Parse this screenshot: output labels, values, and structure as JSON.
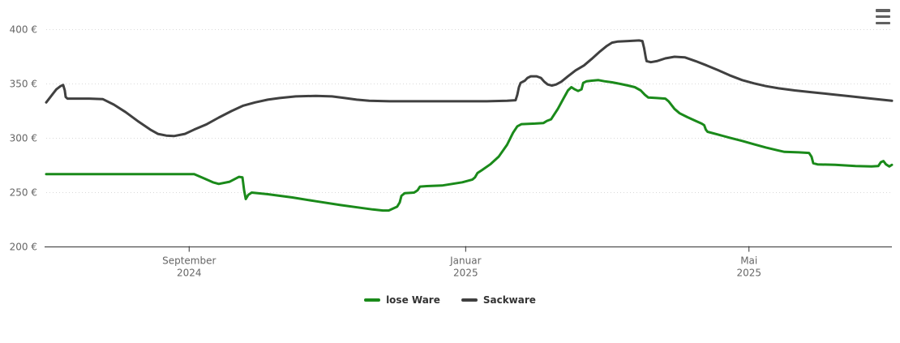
{
  "chart": {
    "background": "#ffffff",
    "axis_color": "#333333",
    "grid_color": "#d9d9d9",
    "label_color": "#666666",
    "menu": {
      "icon": "hamburger-icon"
    }
  },
  "chart_data": {
    "type": "line",
    "title": "",
    "xlabel": "",
    "ylabel": "",
    "x_domain": [
      "Juli 2024",
      "Juli 2025"
    ],
    "x_unit": "fraction of time axis (0 = Juli 2024, 1 = Juli 2025)",
    "ylim": [
      200,
      400
    ],
    "grid": "horizontal dotted",
    "legend_position": "bottom-center",
    "x_ticks": [
      {
        "pos": 0.169,
        "line1": "September",
        "line2": "2024"
      },
      {
        "pos": 0.496,
        "line1": "Januar",
        "line2": "2025"
      },
      {
        "pos": 0.831,
        "line1": "Mai",
        "line2": "2025"
      }
    ],
    "y_ticks": [
      {
        "value": 400,
        "label": "400 €"
      },
      {
        "value": 350,
        "label": "350 €"
      },
      {
        "value": 300,
        "label": "300 €"
      },
      {
        "value": 250,
        "label": "250 €"
      },
      {
        "value": 200,
        "label": "200 €"
      }
    ],
    "series": [
      {
        "name": "lose Ware",
        "color": "#1a8a1a",
        "points": [
          [
            0.0,
            267
          ],
          [
            0.09,
            267
          ],
          [
            0.175,
            267
          ],
          [
            0.187,
            263
          ],
          [
            0.197,
            259.5
          ],
          [
            0.204,
            258
          ],
          [
            0.217,
            260
          ],
          [
            0.228,
            264.5
          ],
          [
            0.232,
            264
          ],
          [
            0.234,
            252
          ],
          [
            0.236,
            244
          ],
          [
            0.239,
            248
          ],
          [
            0.243,
            250
          ],
          [
            0.262,
            248.5
          ],
          [
            0.291,
            245.5
          ],
          [
            0.319,
            242
          ],
          [
            0.348,
            238.5
          ],
          [
            0.372,
            236
          ],
          [
            0.386,
            234.5
          ],
          [
            0.398,
            233.5
          ],
          [
            0.405,
            233.5
          ],
          [
            0.415,
            237
          ],
          [
            0.418,
            241
          ],
          [
            0.42,
            247
          ],
          [
            0.424,
            249.5
          ],
          [
            0.435,
            250
          ],
          [
            0.439,
            252
          ],
          [
            0.442,
            255.5
          ],
          [
            0.45,
            256
          ],
          [
            0.468,
            256.5
          ],
          [
            0.48,
            258
          ],
          [
            0.492,
            259.5
          ],
          [
            0.504,
            262
          ],
          [
            0.507,
            264
          ],
          [
            0.51,
            268
          ],
          [
            0.515,
            270.5
          ],
          [
            0.525,
            276
          ],
          [
            0.535,
            283
          ],
          [
            0.545,
            294
          ],
          [
            0.552,
            305
          ],
          [
            0.557,
            311
          ],
          [
            0.562,
            313
          ],
          [
            0.578,
            313.5
          ],
          [
            0.588,
            314
          ],
          [
            0.592,
            316
          ],
          [
            0.597,
            317.5
          ],
          [
            0.605,
            327
          ],
          [
            0.612,
            337
          ],
          [
            0.617,
            344
          ],
          [
            0.621,
            347
          ],
          [
            0.625,
            345
          ],
          [
            0.629,
            343.5
          ],
          [
            0.633,
            345
          ],
          [
            0.635,
            351
          ],
          [
            0.639,
            352.5
          ],
          [
            0.645,
            353
          ],
          [
            0.653,
            353.5
          ],
          [
            0.66,
            352.5
          ],
          [
            0.669,
            351.5
          ],
          [
            0.679,
            350
          ],
          [
            0.688,
            348.5
          ],
          [
            0.696,
            347
          ],
          [
            0.703,
            344
          ],
          [
            0.708,
            340
          ],
          [
            0.712,
            337.5
          ],
          [
            0.722,
            337
          ],
          [
            0.732,
            336.5
          ],
          [
            0.736,
            334
          ],
          [
            0.743,
            327
          ],
          [
            0.749,
            323
          ],
          [
            0.758,
            319.5
          ],
          [
            0.768,
            316
          ],
          [
            0.775,
            313.5
          ],
          [
            0.778,
            312
          ],
          [
            0.78,
            308
          ],
          [
            0.782,
            306
          ],
          [
            0.794,
            303.5
          ],
          [
            0.808,
            300.5
          ],
          [
            0.823,
            297.5
          ],
          [
            0.837,
            294.5
          ],
          [
            0.851,
            291.5
          ],
          [
            0.864,
            289
          ],
          [
            0.873,
            287.5
          ],
          [
            0.89,
            287
          ],
          [
            0.902,
            286.5
          ],
          [
            0.905,
            283
          ],
          [
            0.907,
            277
          ],
          [
            0.912,
            276
          ],
          [
            0.933,
            275.5
          ],
          [
            0.957,
            274.5
          ],
          [
            0.976,
            274
          ],
          [
            0.984,
            274.5
          ],
          [
            0.987,
            278
          ],
          [
            0.99,
            279
          ],
          [
            0.993,
            276
          ],
          [
            0.997,
            274
          ],
          [
            1.0,
            275.5
          ]
        ]
      },
      {
        "name": "Sackware",
        "color": "#404040",
        "points": [
          [
            0.0,
            333
          ],
          [
            0.003,
            336
          ],
          [
            0.008,
            341
          ],
          [
            0.012,
            345
          ],
          [
            0.017,
            348
          ],
          [
            0.02,
            349
          ],
          [
            0.022,
            344
          ],
          [
            0.023,
            338
          ],
          [
            0.025,
            336.5
          ],
          [
            0.036,
            336.5
          ],
          [
            0.051,
            336.5
          ],
          [
            0.067,
            336
          ],
          [
            0.08,
            331
          ],
          [
            0.094,
            324
          ],
          [
            0.108,
            316
          ],
          [
            0.123,
            308
          ],
          [
            0.132,
            304
          ],
          [
            0.142,
            302.5
          ],
          [
            0.151,
            302
          ],
          [
            0.164,
            304
          ],
          [
            0.175,
            308
          ],
          [
            0.19,
            313
          ],
          [
            0.204,
            319
          ],
          [
            0.219,
            325
          ],
          [
            0.233,
            330
          ],
          [
            0.247,
            333
          ],
          [
            0.262,
            335.5
          ],
          [
            0.276,
            337
          ],
          [
            0.295,
            338.5
          ],
          [
            0.319,
            339
          ],
          [
            0.338,
            338.5
          ],
          [
            0.353,
            337
          ],
          [
            0.367,
            335.5
          ],
          [
            0.382,
            334.5
          ],
          [
            0.406,
            334
          ],
          [
            0.444,
            334
          ],
          [
            0.482,
            334
          ],
          [
            0.521,
            334
          ],
          [
            0.545,
            334.5
          ],
          [
            0.555,
            335
          ],
          [
            0.557,
            340
          ],
          [
            0.559,
            347
          ],
          [
            0.561,
            351
          ],
          [
            0.566,
            353
          ],
          [
            0.569,
            355.5
          ],
          [
            0.573,
            357
          ],
          [
            0.58,
            357
          ],
          [
            0.585,
            355.5
          ],
          [
            0.589,
            352
          ],
          [
            0.593,
            349.5
          ],
          [
            0.598,
            348.5
          ],
          [
            0.603,
            349.5
          ],
          [
            0.609,
            352
          ],
          [
            0.617,
            357
          ],
          [
            0.626,
            362.5
          ],
          [
            0.636,
            367
          ],
          [
            0.645,
            373
          ],
          [
            0.655,
            380
          ],
          [
            0.663,
            385
          ],
          [
            0.669,
            388
          ],
          [
            0.676,
            389
          ],
          [
            0.688,
            389.5
          ],
          [
            0.701,
            390
          ],
          [
            0.705,
            389.5
          ],
          [
            0.707,
            383
          ],
          [
            0.709,
            374
          ],
          [
            0.71,
            371
          ],
          [
            0.715,
            370
          ],
          [
            0.722,
            371
          ],
          [
            0.732,
            373.5
          ],
          [
            0.743,
            375
          ],
          [
            0.755,
            374.5
          ],
          [
            0.768,
            371
          ],
          [
            0.781,
            367
          ],
          [
            0.795,
            362.5
          ],
          [
            0.808,
            358
          ],
          [
            0.823,
            353.5
          ],
          [
            0.837,
            350.5
          ],
          [
            0.851,
            348
          ],
          [
            0.866,
            346
          ],
          [
            0.885,
            344
          ],
          [
            0.904,
            342.5
          ],
          [
            0.928,
            340.5
          ],
          [
            0.952,
            338.5
          ],
          [
            0.976,
            336.5
          ],
          [
            1.0,
            334.5
          ]
        ]
      }
    ]
  }
}
